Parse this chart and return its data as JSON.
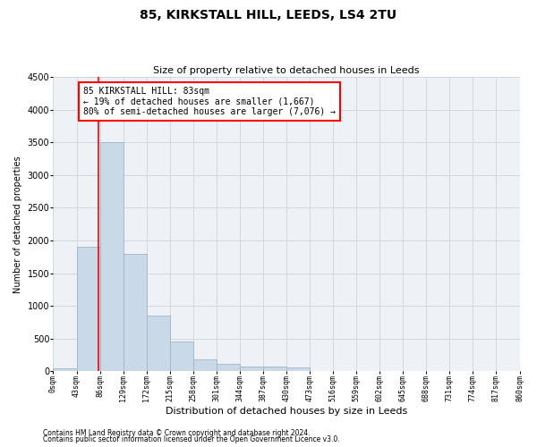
{
  "title1": "85, KIRKSTALL HILL, LEEDS, LS4 2TU",
  "title2": "Size of property relative to detached houses in Leeds",
  "xlabel": "Distribution of detached houses by size in Leeds",
  "ylabel": "Number of detached properties",
  "bar_edges": [
    0,
    43,
    86,
    129,
    172,
    215,
    258,
    301,
    344,
    387,
    430,
    473,
    516,
    559,
    602,
    645,
    688,
    731,
    774,
    817,
    860
  ],
  "bar_heights": [
    50,
    1900,
    3500,
    1800,
    850,
    450,
    175,
    110,
    75,
    70,
    60,
    0,
    0,
    0,
    0,
    0,
    0,
    0,
    0,
    0
  ],
  "bar_color": "#c9d9e8",
  "bar_edge_color": "#a0b4c8",
  "red_line_x": 83,
  "annotation_text": "85 KIRKSTALL HILL: 83sqm\n← 19% of detached houses are smaller (1,667)\n80% of semi-detached houses are larger (7,076) →",
  "annotation_box_color": "white",
  "annotation_box_edge": "red",
  "ylim": [
    0,
    4500
  ],
  "yticks": [
    0,
    500,
    1000,
    1500,
    2000,
    2500,
    3000,
    3500,
    4000,
    4500
  ],
  "tick_labels": [
    "0sqm",
    "43sqm",
    "86sqm",
    "129sqm",
    "172sqm",
    "215sqm",
    "258sqm",
    "301sqm",
    "344sqm",
    "387sqm",
    "430sqm",
    "473sqm",
    "516sqm",
    "559sqm",
    "602sqm",
    "645sqm",
    "688sqm",
    "731sqm",
    "774sqm",
    "817sqm",
    "860sqm"
  ],
  "footnote1": "Contains HM Land Registry data © Crown copyright and database right 2024.",
  "footnote2": "Contains public sector information licensed under the Open Government Licence v3.0.",
  "grid_color": "#d0d8e0",
  "bg_color": "#eef2f7",
  "title1_fontsize": 10,
  "title2_fontsize": 8,
  "xlabel_fontsize": 8,
  "ylabel_fontsize": 7,
  "ytick_fontsize": 7,
  "xtick_fontsize": 6,
  "annot_fontsize": 7,
  "footnote_fontsize": 5.5
}
